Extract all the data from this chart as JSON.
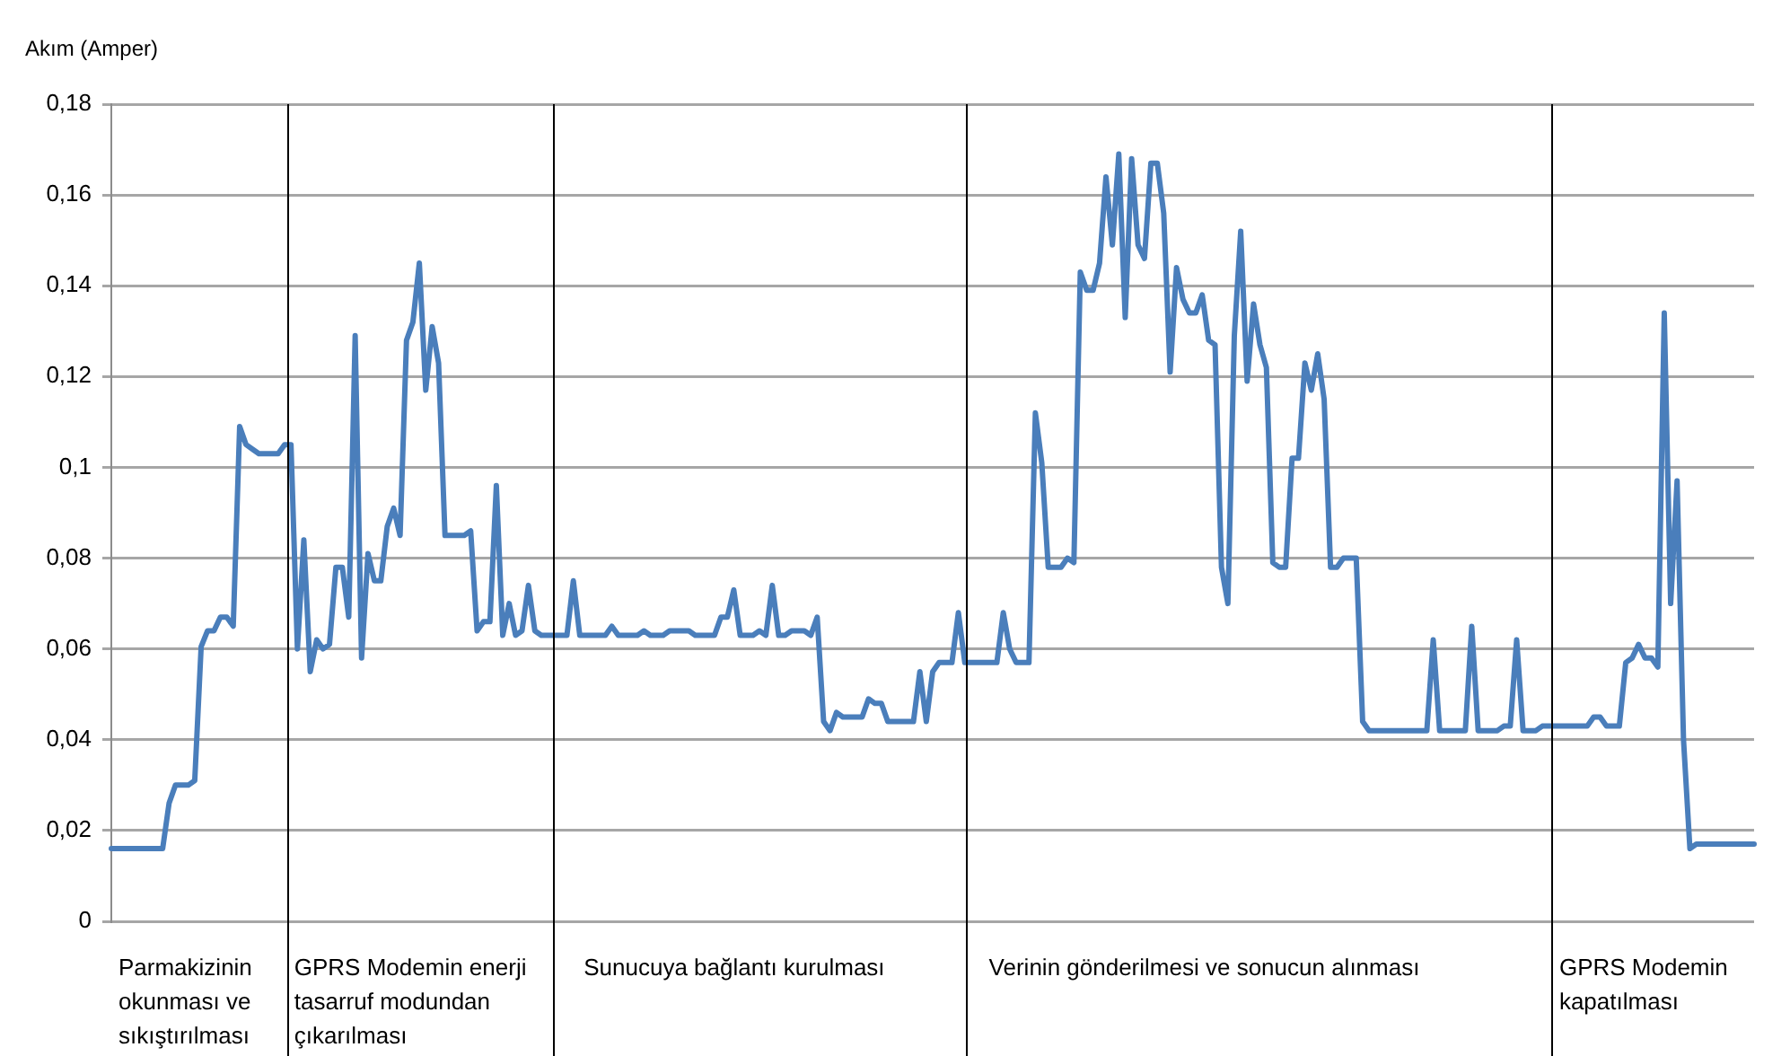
{
  "chart_data": {
    "type": "line",
    "ylabel": "Akım (Amper)",
    "ylim": [
      0,
      0.18
    ],
    "yticks": [
      0,
      {
        "value": 0.02,
        "label": "0,02"
      },
      {
        "value": 0.04,
        "label": "0,04"
      },
      {
        "value": 0.06,
        "label": "0,06"
      },
      {
        "value": 0.08,
        "label": "0,08"
      },
      {
        "value": 0.1,
        "label": "0,1"
      },
      {
        "value": 0.12,
        "label": "0,12"
      },
      {
        "value": 0.14,
        "label": "0,14"
      },
      {
        "value": 0.16,
        "label": "0,16"
      },
      {
        "value": 0.18,
        "label": "0,18"
      }
    ],
    "tick_labels": "y",
    "grid": "y",
    "legend": false,
    "marker": "none",
    "line_style": "solid",
    "categories": [
      null,
      null,
      null,
      null,
      null,
      null,
      null,
      null,
      null,
      null,
      null,
      null,
      null,
      null,
      null,
      null,
      null,
      null,
      null,
      null,
      null,
      null,
      null,
      null,
      null,
      null,
      null,
      null,
      null,
      null,
      null,
      null,
      null,
      null,
      null,
      null,
      null,
      null,
      null,
      null,
      null,
      null,
      null,
      null,
      null,
      null,
      null,
      null,
      null,
      null,
      null,
      null,
      null,
      null,
      null,
      null,
      null,
      null,
      null,
      null,
      null,
      null,
      null,
      null,
      null,
      null,
      null,
      null,
      null,
      null,
      null,
      null,
      null,
      null,
      null,
      null,
      null,
      null,
      null,
      null,
      null,
      null,
      null,
      null,
      null,
      null,
      null,
      null,
      null,
      null,
      null,
      null,
      null,
      null,
      null,
      null,
      null,
      null,
      null,
      null,
      null,
      null,
      null,
      null,
      null,
      null,
      null,
      null,
      null,
      null,
      null,
      null,
      null,
      null,
      null,
      null,
      null,
      null,
      null,
      null,
      null,
      null,
      null,
      null,
      null,
      null,
      null,
      null,
      null,
      null,
      null,
      null,
      null,
      null,
      null,
      null,
      null,
      null,
      null,
      null,
      null,
      null,
      null,
      null,
      null,
      null,
      null,
      null,
      null,
      null,
      null,
      null,
      null,
      null,
      null,
      null,
      null,
      null,
      null,
      null,
      null,
      null,
      null,
      null,
      null,
      null,
      null,
      null,
      null,
      null,
      null,
      null,
      null,
      null,
      null,
      null,
      null,
      null,
      null,
      null,
      null,
      null,
      null,
      null,
      null,
      null,
      null,
      null,
      null,
      null,
      null,
      null,
      null,
      null,
      null,
      null,
      null,
      null,
      null,
      null,
      null,
      null,
      null,
      null,
      null,
      null,
      null,
      null,
      null,
      null,
      null,
      null,
      null,
      null,
      null,
      null,
      null,
      null,
      null,
      null,
      null,
      null,
      null,
      null,
      null,
      null,
      null,
      null,
      null,
      null,
      null,
      null,
      null,
      null,
      null,
      null,
      null,
      null,
      null,
      null,
      null,
      null,
      null,
      null,
      null,
      null,
      null,
      null,
      null,
      null,
      null,
      null,
      null,
      null,
      null,
      null,
      null
    ],
    "series": [
      {
        "color": "#4a7ebb",
        "values": [
          0.016,
          0.016,
          0.016,
          0.016,
          0.016,
          0.016,
          0.016,
          0.016,
          0.016,
          0.026,
          0.03,
          0.03,
          0.03,
          0.031,
          0.0605,
          0.064,
          0.064,
          0.067,
          0.067,
          0.065,
          0.109,
          0.105,
          0.104,
          0.103,
          0.103,
          0.103,
          0.103,
          0.105,
          0.105,
          0.06,
          0.084,
          0.055,
          0.062,
          0.06,
          0.061,
          0.078,
          0.078,
          0.067,
          0.129,
          0.058,
          0.081,
          0.075,
          0.075,
          0.087,
          0.091,
          0.085,
          0.128,
          0.132,
          0.145,
          0.117,
          0.131,
          0.123,
          0.085,
          0.085,
          0.085,
          0.085,
          0.086,
          0.064,
          0.066,
          0.066,
          0.096,
          0.063,
          0.07,
          0.063,
          0.064,
          0.074,
          0.064,
          0.063,
          0.063,
          0.063,
          0.063,
          0.063,
          0.075,
          0.063,
          0.063,
          0.063,
          0.063,
          0.063,
          0.065,
          0.063,
          0.063,
          0.063,
          0.063,
          0.064,
          0.063,
          0.063,
          0.063,
          0.064,
          0.064,
          0.064,
          0.064,
          0.063,
          0.063,
          0.063,
          0.063,
          0.067,
          0.067,
          0.073,
          0.063,
          0.063,
          0.063,
          0.064,
          0.063,
          0.074,
          0.063,
          0.063,
          0.064,
          0.064,
          0.064,
          0.063,
          0.067,
          0.044,
          0.042,
          0.046,
          0.045,
          0.045,
          0.045,
          0.045,
          0.049,
          0.048,
          0.048,
          0.044,
          0.044,
          0.044,
          0.044,
          0.044,
          0.055,
          0.044,
          0.055,
          0.057,
          0.057,
          0.057,
          0.068,
          0.057,
          0.057,
          0.057,
          0.057,
          0.057,
          0.057,
          0.068,
          0.06,
          0.057,
          0.057,
          0.057,
          0.112,
          0.101,
          0.078,
          0.078,
          0.078,
          0.08,
          0.079,
          0.143,
          0.139,
          0.139,
          0.145,
          0.164,
          0.149,
          0.169,
          0.133,
          0.168,
          0.149,
          0.146,
          0.167,
          0.167,
          0.156,
          0.121,
          0.144,
          0.137,
          0.134,
          0.134,
          0.138,
          0.128,
          0.127,
          0.078,
          0.07,
          0.129,
          0.152,
          0.119,
          0.136,
          0.127,
          0.122,
          0.079,
          0.078,
          0.078,
          0.102,
          0.102,
          0.123,
          0.117,
          0.125,
          0.115,
          0.078,
          0.078,
          0.08,
          0.08,
          0.08,
          0.044,
          0.042,
          0.042,
          0.042,
          0.042,
          0.042,
          0.042,
          0.042,
          0.042,
          0.042,
          0.042,
          0.062,
          0.042,
          0.042,
          0.042,
          0.042,
          0.042,
          0.065,
          0.042,
          0.042,
          0.042,
          0.042,
          0.043,
          0.043,
          0.062,
          0.042,
          0.042,
          0.042,
          0.043,
          0.043,
          0.043,
          0.043,
          0.043,
          0.043,
          0.043,
          0.043,
          0.045,
          0.045,
          0.043,
          0.043,
          0.043,
          0.057,
          0.058,
          0.061,
          0.058,
          0.058,
          0.056,
          0.134,
          0.07,
          0.097,
          0.04,
          0.016,
          0.017,
          0.017,
          0.017,
          0.017,
          0.017,
          0.017,
          0.017,
          0.017,
          0.017,
          0.017
        ]
      }
    ],
    "annotations": [
      "Parmakizinin okunması ve sıkıştırılması",
      "GPRS Modemin enerji tasarruf modundan çıkarılması",
      "Sunucuya bağlantı kurulması",
      "Verinin gönderilmesi ve sonucun alınması",
      "GPRS Modemin kapatılması"
    ]
  }
}
